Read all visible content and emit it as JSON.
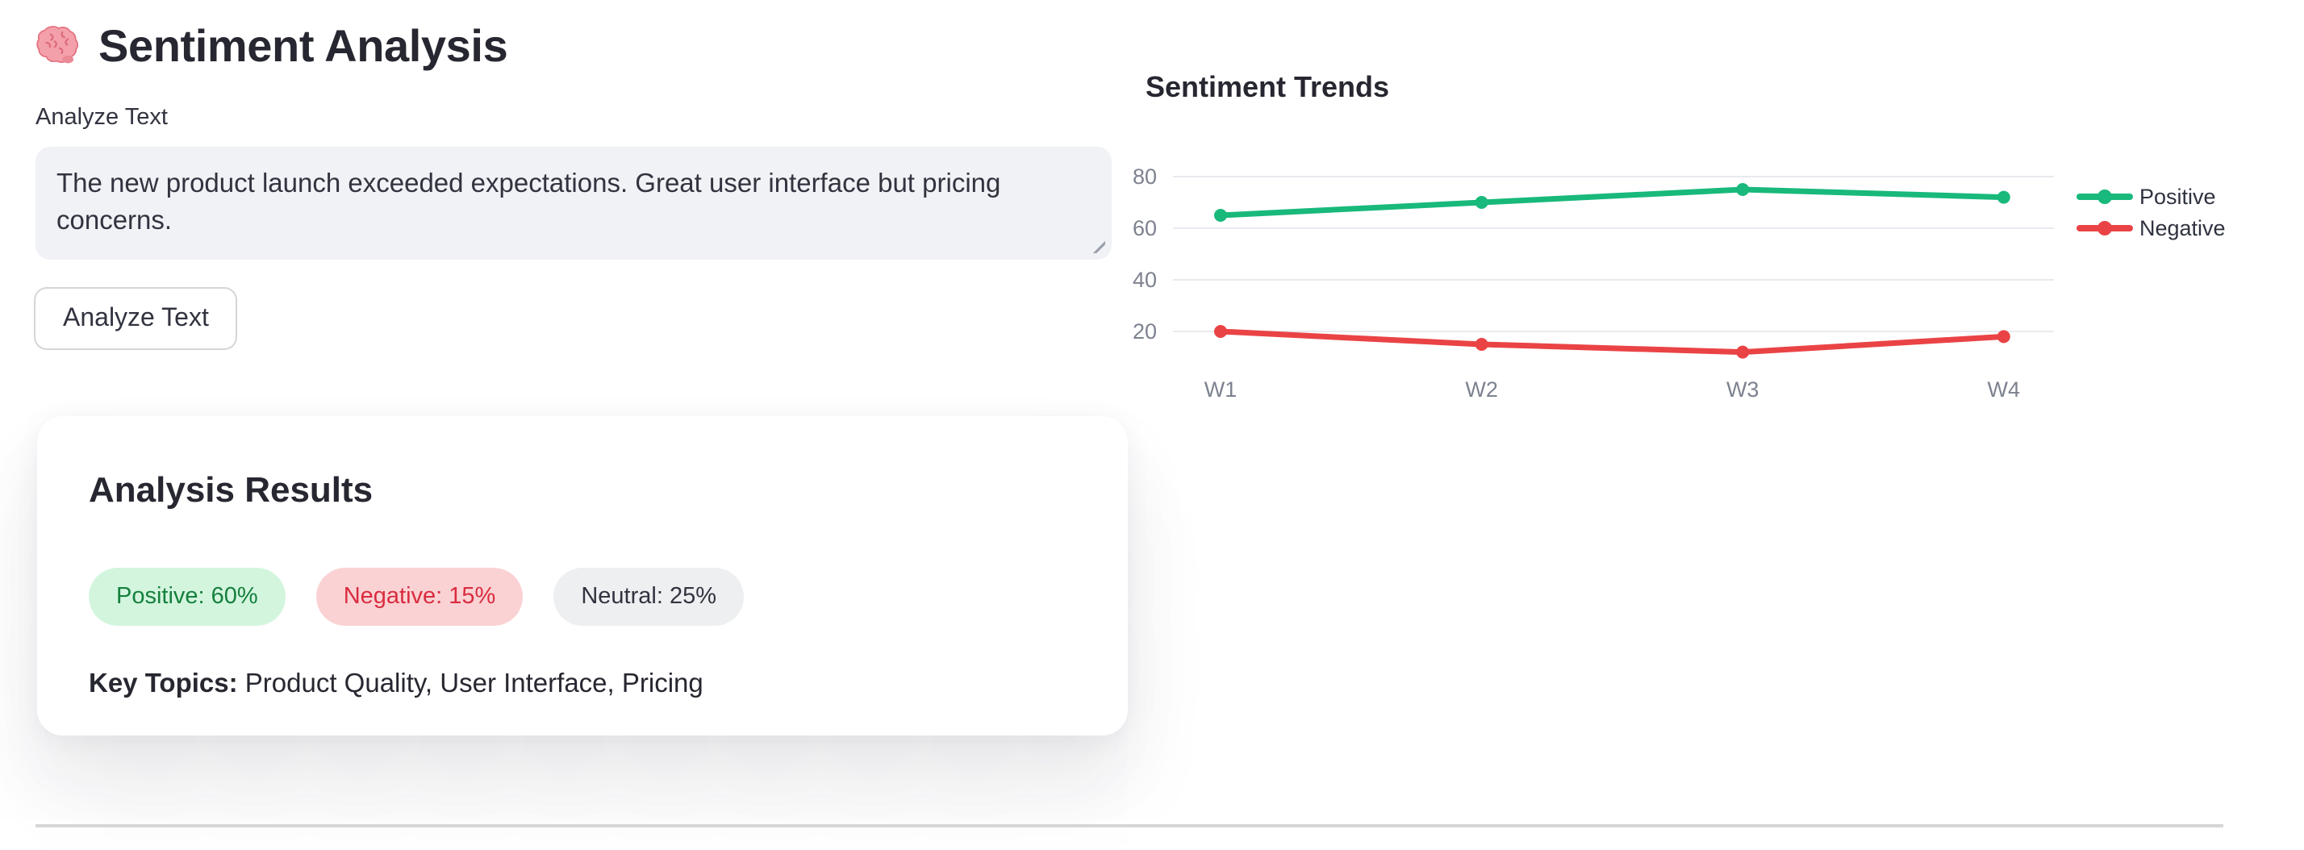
{
  "header": {
    "icon": "🧠",
    "title": "Sentiment Analysis"
  },
  "input_section": {
    "label": "Analyze Text",
    "value": "The new product launch exceeded expectations. Great user interface but pricing concerns.",
    "button_label": "Analyze Text"
  },
  "results_card": {
    "title": "Analysis Results",
    "badges": [
      {
        "label": "Positive: 60%",
        "bg": "#d3f5de",
        "color": "#15803d"
      },
      {
        "label": "Negative: 15%",
        "bg": "#fad2d4",
        "color": "#d92c3f"
      },
      {
        "label": "Neutral: 25%",
        "bg": "#edeff1",
        "color": "#31333f"
      }
    ],
    "key_topics_label": "Key Topics:",
    "key_topics_value": "Product Quality, User Interface, Pricing"
  },
  "chart_data": {
    "type": "line",
    "title": "Sentiment Trends",
    "categories": [
      "W1",
      "W2",
      "W3",
      "W4"
    ],
    "series": [
      {
        "name": "Positive",
        "color": "#18b97b",
        "values": [
          65,
          70,
          75,
          72
        ]
      },
      {
        "name": "Negative",
        "color": "#ea4345",
        "values": [
          20,
          15,
          12,
          18
        ]
      }
    ],
    "yticks": [
      20,
      40,
      60,
      80
    ],
    "ylim": [
      0,
      88
    ],
    "grid": "horizontal",
    "legend_position": "right",
    "xlabel": "",
    "ylabel": ""
  }
}
